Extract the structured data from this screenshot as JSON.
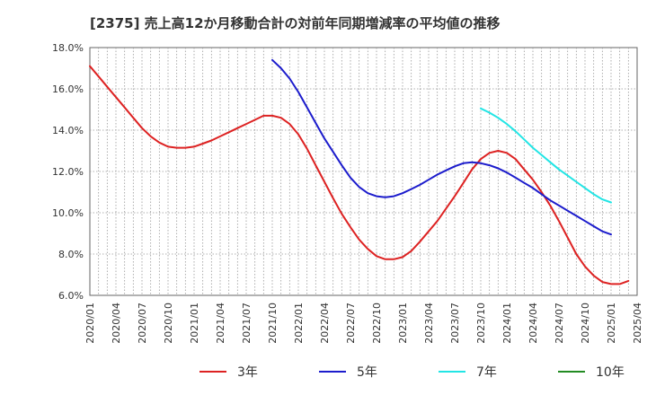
{
  "chart_data": {
    "type": "line",
    "title": "[2375]  売上高12か月移動合計の対前年同期増減率の平均値の推移",
    "xlabel": "",
    "ylabel": "",
    "ylim": [
      6.0,
      18.0
    ],
    "y_ticks": [
      "6.0%",
      "8.0%",
      "10.0%",
      "12.0%",
      "14.0%",
      "16.0%",
      "18.0%"
    ],
    "x_ticks": [
      "2020/01",
      "2020/04",
      "2020/07",
      "2020/10",
      "2021/01",
      "2021/04",
      "2021/07",
      "2021/10",
      "2022/01",
      "2022/04",
      "2022/07",
      "2022/10",
      "2023/01",
      "2023/04",
      "2023/07",
      "2023/10",
      "2024/01",
      "2024/04",
      "2024/07",
      "2024/10",
      "2025/01",
      "2025/04"
    ],
    "grid": true,
    "legend_position": "bottom",
    "series": [
      {
        "name": "3年",
        "color": "#dd2222",
        "points": [
          [
            "2020/01",
            17.1
          ],
          [
            "2020/02",
            16.6
          ],
          [
            "2020/03",
            16.1
          ],
          [
            "2020/04",
            15.6
          ],
          [
            "2020/05",
            15.1
          ],
          [
            "2020/06",
            14.6
          ],
          [
            "2020/07",
            14.1
          ],
          [
            "2020/08",
            13.7
          ],
          [
            "2020/09",
            13.4
          ],
          [
            "2020/10",
            13.2
          ],
          [
            "2020/11",
            13.15
          ],
          [
            "2020/12",
            13.15
          ],
          [
            "2021/01",
            13.2
          ],
          [
            "2021/02",
            13.35
          ],
          [
            "2021/03",
            13.5
          ],
          [
            "2021/04",
            13.7
          ],
          [
            "2021/05",
            13.9
          ],
          [
            "2021/06",
            14.1
          ],
          [
            "2021/07",
            14.3
          ],
          [
            "2021/08",
            14.5
          ],
          [
            "2021/09",
            14.7
          ],
          [
            "2021/10",
            14.7
          ],
          [
            "2021/11",
            14.6
          ],
          [
            "2021/12",
            14.3
          ],
          [
            "2022/01",
            13.8
          ],
          [
            "2022/02",
            13.1
          ],
          [
            "2022/03",
            12.3
          ],
          [
            "2022/04",
            11.5
          ],
          [
            "2022/05",
            10.7
          ],
          [
            "2022/06",
            9.95
          ],
          [
            "2022/07",
            9.3
          ],
          [
            "2022/08",
            8.7
          ],
          [
            "2022/09",
            8.25
          ],
          [
            "2022/10",
            7.9
          ],
          [
            "2022/11",
            7.75
          ],
          [
            "2022/12",
            7.75
          ],
          [
            "2023/01",
            7.85
          ],
          [
            "2023/02",
            8.15
          ],
          [
            "2023/03",
            8.6
          ],
          [
            "2023/04",
            9.1
          ],
          [
            "2023/05",
            9.6
          ],
          [
            "2023/06",
            10.2
          ],
          [
            "2023/07",
            10.8
          ],
          [
            "2023/08",
            11.45
          ],
          [
            "2023/09",
            12.1
          ],
          [
            "2023/10",
            12.6
          ],
          [
            "2023/11",
            12.9
          ],
          [
            "2023/12",
            13.0
          ],
          [
            "2024/01",
            12.9
          ],
          [
            "2024/02",
            12.6
          ],
          [
            "2024/03",
            12.1
          ],
          [
            "2024/04",
            11.6
          ],
          [
            "2024/05",
            11.0
          ],
          [
            "2024/06",
            10.35
          ],
          [
            "2024/07",
            9.6
          ],
          [
            "2024/08",
            8.8
          ],
          [
            "2024/09",
            8.0
          ],
          [
            "2024/10",
            7.4
          ],
          [
            "2024/11",
            6.95
          ],
          [
            "2024/12",
            6.65
          ],
          [
            "2025/01",
            6.55
          ],
          [
            "2025/02",
            6.55
          ],
          [
            "2025/03",
            6.7
          ]
        ]
      },
      {
        "name": "5年",
        "color": "#1c1ccc",
        "points": [
          [
            "2021/10",
            17.4
          ],
          [
            "2021/11",
            17.0
          ],
          [
            "2021/12",
            16.5
          ],
          [
            "2022/01",
            15.85
          ],
          [
            "2022/02",
            15.1
          ],
          [
            "2022/03",
            14.35
          ],
          [
            "2022/04",
            13.6
          ],
          [
            "2022/05",
            12.95
          ],
          [
            "2022/06",
            12.3
          ],
          [
            "2022/07",
            11.7
          ],
          [
            "2022/08",
            11.25
          ],
          [
            "2022/09",
            10.95
          ],
          [
            "2022/10",
            10.8
          ],
          [
            "2022/11",
            10.75
          ],
          [
            "2022/12",
            10.8
          ],
          [
            "2023/01",
            10.95
          ],
          [
            "2023/02",
            11.15
          ],
          [
            "2023/03",
            11.35
          ],
          [
            "2023/04",
            11.6
          ],
          [
            "2023/05",
            11.85
          ],
          [
            "2023/06",
            12.05
          ],
          [
            "2023/07",
            12.25
          ],
          [
            "2023/08",
            12.4
          ],
          [
            "2023/09",
            12.45
          ],
          [
            "2023/10",
            12.4
          ],
          [
            "2023/11",
            12.3
          ],
          [
            "2023/12",
            12.15
          ],
          [
            "2024/01",
            11.95
          ],
          [
            "2024/02",
            11.7
          ],
          [
            "2024/03",
            11.45
          ],
          [
            "2024/04",
            11.2
          ],
          [
            "2024/05",
            10.9
          ],
          [
            "2024/06",
            10.6
          ],
          [
            "2024/07",
            10.35
          ],
          [
            "2024/08",
            10.1
          ],
          [
            "2024/09",
            9.85
          ],
          [
            "2024/10",
            9.6
          ],
          [
            "2024/11",
            9.35
          ],
          [
            "2024/12",
            9.1
          ],
          [
            "2025/01",
            8.95
          ]
        ]
      },
      {
        "name": "7年",
        "color": "#22e5e5",
        "points": [
          [
            "2023/10",
            15.05
          ],
          [
            "2023/11",
            14.85
          ],
          [
            "2023/12",
            14.6
          ],
          [
            "2024/01",
            14.3
          ],
          [
            "2024/02",
            13.95
          ],
          [
            "2024/03",
            13.55
          ],
          [
            "2024/04",
            13.15
          ],
          [
            "2024/05",
            12.8
          ],
          [
            "2024/06",
            12.45
          ],
          [
            "2024/07",
            12.1
          ],
          [
            "2024/08",
            11.8
          ],
          [
            "2024/09",
            11.5
          ],
          [
            "2024/10",
            11.2
          ],
          [
            "2024/11",
            10.9
          ],
          [
            "2024/12",
            10.65
          ],
          [
            "2025/01",
            10.5
          ]
        ]
      },
      {
        "name": "10年",
        "color": "#228b22",
        "points": []
      }
    ]
  }
}
